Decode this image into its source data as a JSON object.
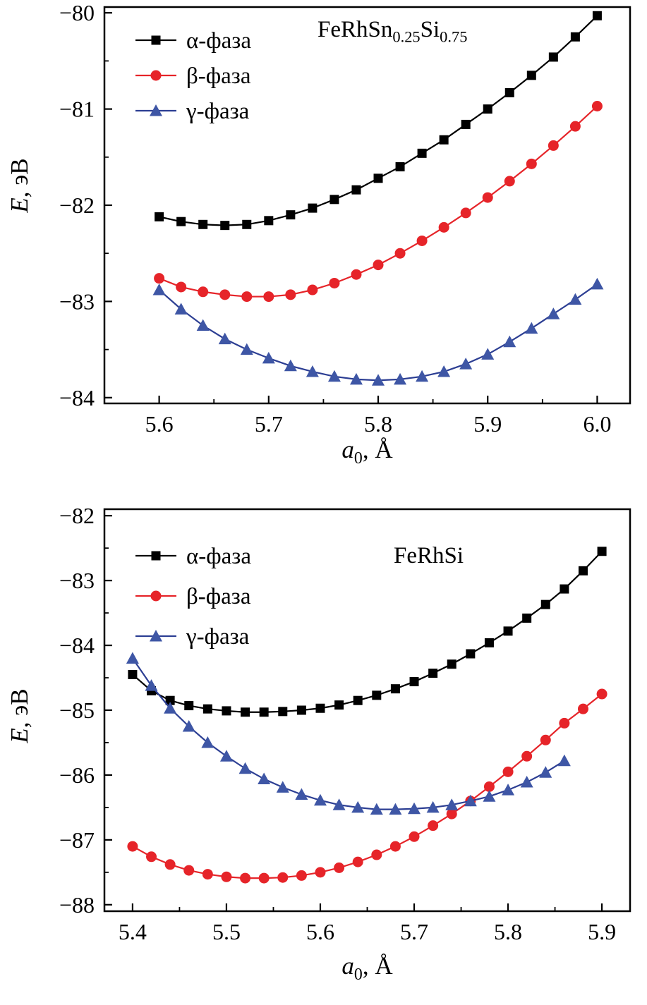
{
  "chart_data": [
    {
      "type": "line",
      "title": "FeRhSn_{0.25}Si_{0.75}",
      "xlabel": "*a*_{0}, Å",
      "ylabel": "*E*, эВ",
      "xlim": [
        5.55,
        6.03
      ],
      "ylim": [
        -84.06,
        -79.94
      ],
      "grid": false,
      "legend_position": "top-left",
      "xticks": {
        "values": [
          5.6,
          5.7,
          5.8,
          5.9,
          6.0
        ],
        "labels": [
          "5.6",
          "5.7",
          "5.8",
          "5.9",
          "6.0"
        ]
      },
      "yticks": {
        "values": [
          -80,
          -81,
          -82,
          -83,
          -84
        ],
        "labels": [
          "−80",
          "−81",
          "−82",
          "−83",
          "−84"
        ]
      },
      "series": [
        {
          "name": "α-фаза",
          "marker": "square",
          "color": "#000000",
          "line_color": "#000000",
          "x": [
            5.6,
            5.62,
            5.64,
            5.66,
            5.68,
            5.7,
            5.72,
            5.74,
            5.76,
            5.78,
            5.8,
            5.82,
            5.84,
            5.86,
            5.88,
            5.9,
            5.92,
            5.94,
            5.96,
            5.98,
            6.0
          ],
          "y": [
            -82.12,
            -82.17,
            -82.2,
            -82.21,
            -82.2,
            -82.16,
            -82.1,
            -82.03,
            -81.94,
            -81.84,
            -81.72,
            -81.6,
            -81.46,
            -81.32,
            -81.16,
            -81.0,
            -80.83,
            -80.65,
            -80.46,
            -80.25,
            -80.03
          ]
        },
        {
          "name": "β-фаза",
          "marker": "circle",
          "color": "#e62429",
          "line_color": "#e62429",
          "x": [
            5.6,
            5.62,
            5.64,
            5.66,
            5.68,
            5.7,
            5.72,
            5.74,
            5.76,
            5.78,
            5.8,
            5.82,
            5.84,
            5.86,
            5.88,
            5.9,
            5.92,
            5.94,
            5.96,
            5.98,
            6.0
          ],
          "y": [
            -82.76,
            -82.85,
            -82.9,
            -82.93,
            -82.95,
            -82.95,
            -82.93,
            -82.88,
            -82.81,
            -82.72,
            -82.62,
            -82.5,
            -82.37,
            -82.23,
            -82.08,
            -81.92,
            -81.75,
            -81.57,
            -81.38,
            -81.18,
            -80.97
          ]
        },
        {
          "name": "γ-фаза",
          "marker": "triangle",
          "color": "#3e56a5",
          "line_color": "#2c3e93",
          "x": [
            5.6,
            5.62,
            5.64,
            5.66,
            5.68,
            5.7,
            5.72,
            5.74,
            5.76,
            5.78,
            5.8,
            5.82,
            5.84,
            5.86,
            5.88,
            5.9,
            5.92,
            5.94,
            5.96,
            5.98,
            6.0
          ],
          "y": [
            -82.88,
            -83.08,
            -83.25,
            -83.39,
            -83.5,
            -83.59,
            -83.67,
            -83.73,
            -83.78,
            -83.81,
            -83.82,
            -83.81,
            -83.78,
            -83.73,
            -83.65,
            -83.55,
            -83.42,
            -83.28,
            -83.13,
            -82.98,
            -82.82
          ]
        }
      ]
    },
    {
      "type": "line",
      "title": "FeRhSi",
      "xlabel": "*a*_{0}, Å",
      "ylabel": "*E*, эВ",
      "xlim": [
        5.37,
        5.93
      ],
      "ylim": [
        -88.1,
        -81.9
      ],
      "grid": false,
      "legend_position": "top-left",
      "xticks": {
        "values": [
          5.4,
          5.5,
          5.6,
          5.7,
          5.8,
          5.9
        ],
        "labels": [
          "5.4",
          "5.5",
          "5.6",
          "5.7",
          "5.8",
          "5.9"
        ]
      },
      "yticks": {
        "values": [
          -82,
          -83,
          -84,
          -85,
          -86,
          -87,
          -88
        ],
        "labels": [
          "−82",
          "−83",
          "−84",
          "−85",
          "−86",
          "−87",
          "−88"
        ]
      },
      "series": [
        {
          "name": "α-фаза",
          "marker": "square",
          "color": "#000000",
          "line_color": "#000000",
          "x": [
            5.4,
            5.42,
            5.44,
            5.46,
            5.48,
            5.5,
            5.52,
            5.54,
            5.56,
            5.58,
            5.6,
            5.62,
            5.64,
            5.66,
            5.68,
            5.7,
            5.72,
            5.74,
            5.76,
            5.78,
            5.8,
            5.82,
            5.84,
            5.86,
            5.88,
            5.9
          ],
          "y": [
            -84.45,
            -84.7,
            -84.85,
            -84.93,
            -84.98,
            -85.01,
            -85.03,
            -85.03,
            -85.02,
            -85.0,
            -84.97,
            -84.92,
            -84.85,
            -84.77,
            -84.67,
            -84.56,
            -84.43,
            -84.29,
            -84.13,
            -83.96,
            -83.78,
            -83.58,
            -83.37,
            -83.13,
            -82.85,
            -82.55
          ]
        },
        {
          "name": "β-фаза",
          "marker": "circle",
          "color": "#e62429",
          "line_color": "#e62429",
          "x": [
            5.4,
            5.42,
            5.44,
            5.46,
            5.48,
            5.5,
            5.52,
            5.54,
            5.56,
            5.58,
            5.6,
            5.62,
            5.64,
            5.66,
            5.68,
            5.7,
            5.72,
            5.74,
            5.76,
            5.78,
            5.8,
            5.82,
            5.84,
            5.86,
            5.88,
            5.9
          ],
          "y": [
            -87.1,
            -87.26,
            -87.38,
            -87.47,
            -87.53,
            -87.57,
            -87.59,
            -87.59,
            -87.58,
            -87.55,
            -87.5,
            -87.43,
            -87.34,
            -87.23,
            -87.1,
            -86.95,
            -86.78,
            -86.6,
            -86.4,
            -86.18,
            -85.95,
            -85.71,
            -85.46,
            -85.2,
            -84.98,
            -84.75
          ]
        },
        {
          "name": "γ-фаза",
          "marker": "triangle",
          "color": "#3e56a5",
          "line_color": "#2c3e93",
          "x": [
            5.4,
            5.42,
            5.44,
            5.46,
            5.48,
            5.5,
            5.52,
            5.54,
            5.56,
            5.58,
            5.6,
            5.62,
            5.64,
            5.66,
            5.68,
            5.7,
            5.72,
            5.74,
            5.76,
            5.78,
            5.8,
            5.82,
            5.84,
            5.86
          ],
          "y": [
            -84.2,
            -84.62,
            -84.97,
            -85.25,
            -85.5,
            -85.71,
            -85.9,
            -86.06,
            -86.19,
            -86.3,
            -86.39,
            -86.46,
            -86.5,
            -86.53,
            -86.53,
            -86.52,
            -86.5,
            -86.46,
            -86.4,
            -86.33,
            -86.23,
            -86.11,
            -85.96,
            -85.78
          ]
        }
      ]
    }
  ]
}
